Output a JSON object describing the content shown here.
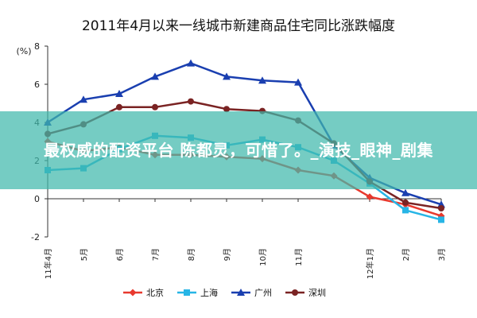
{
  "chart_data": {
    "type": "line",
    "title": "2011年4月以来一线城市新建商品住宅同比涨跌幅度",
    "ylabel": "(%)",
    "xlabel": "",
    "ylim": [
      -2,
      8
    ],
    "yticks": [
      -2,
      0,
      2,
      4,
      6,
      8
    ],
    "categories": [
      "11年4月",
      "5月",
      "6月",
      "7月",
      "8月",
      "9月",
      "10月",
      "11月",
      "12年1月",
      "2月",
      "3月"
    ],
    "x_tick_labels": [
      "11年4月",
      "5月",
      "6月",
      "7月",
      "8月",
      "9月",
      "10月",
      "11月",
      "12年1月",
      "2月",
      "3月"
    ],
    "x_tick_positions": [
      0,
      1,
      2,
      3,
      4,
      5,
      6,
      7,
      9,
      10,
      11
    ],
    "x_range": [
      0,
      11
    ],
    "x": [
      0,
      1,
      2,
      3,
      4,
      5,
      6,
      7,
      8,
      9,
      10,
      11
    ],
    "grid": false,
    "legend_position": "bottom",
    "series": [
      {
        "name": "北京",
        "color": "#e8392e",
        "marker": "diamond",
        "values": [
          3.0,
          2.5,
          2.7,
          2.3,
          2.3,
          2.2,
          2.1,
          1.5,
          1.2,
          0.1,
          -0.3,
          -0.9
        ]
      },
      {
        "name": "上海",
        "color": "#27b5e6",
        "marker": "square",
        "values": [
          1.5,
          1.6,
          2.6,
          3.3,
          3.2,
          2.8,
          3.1,
          2.7,
          2.0,
          0.8,
          -0.6,
          -1.1
        ]
      },
      {
        "name": "广州",
        "color": "#1a3fb0",
        "marker": "triangle",
        "values": [
          4.0,
          5.2,
          5.5,
          6.4,
          7.1,
          6.4,
          6.2,
          6.1,
          2.8,
          1.1,
          0.3,
          -0.3
        ]
      },
      {
        "name": "深圳",
        "color": "#7a2323",
        "marker": "circle",
        "values": [
          3.4,
          3.9,
          4.8,
          4.8,
          5.1,
          4.7,
          4.6,
          4.1,
          2.9,
          0.9,
          -0.2,
          -0.5
        ]
      }
    ]
  },
  "watermark": {
    "text": "最权威的配资平台 陈都灵，可惜了。_演技_眼神_剧集"
  }
}
